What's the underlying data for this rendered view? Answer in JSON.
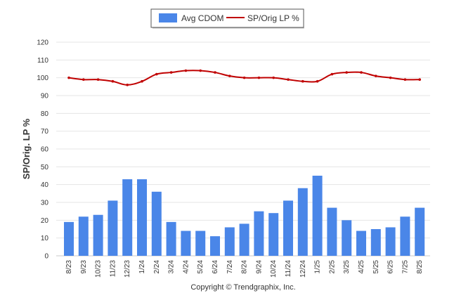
{
  "chart_data": {
    "type": "bar",
    "categories": [
      "8/23",
      "9/23",
      "10/23",
      "11/23",
      "12/23",
      "1/24",
      "2/24",
      "3/24",
      "4/24",
      "5/24",
      "6/24",
      "7/24",
      "8/24",
      "9/24",
      "10/24",
      "11/24",
      "12/24",
      "1/25",
      "2/25",
      "3/25",
      "4/25",
      "5/25",
      "6/25",
      "7/25",
      "8/25"
    ],
    "series": [
      {
        "name": "Avg CDOM",
        "type": "bar",
        "color": "#4a86e8",
        "values": [
          19,
          22,
          23,
          31,
          43,
          43,
          36,
          19,
          14,
          14,
          11,
          16,
          18,
          25,
          24,
          31,
          38,
          45,
          27,
          20,
          14,
          15,
          16,
          22,
          27
        ]
      },
      {
        "name": "SP/Orig LP %",
        "type": "line",
        "color": "#c00000",
        "values": [
          100,
          99,
          99,
          98,
          96,
          98,
          102,
          103,
          104,
          104,
          103,
          101,
          100,
          100,
          100,
          99,
          98,
          98,
          102,
          103,
          103,
          101,
          100,
          99,
          99
        ]
      }
    ],
    "ylabel": "SP/Orig. LP %",
    "ylim": [
      0,
      120
    ],
    "yticks": [
      0,
      10,
      20,
      30,
      40,
      50,
      60,
      70,
      80,
      90,
      100,
      110,
      120
    ],
    "grid": true,
    "legend_position": "top-center"
  },
  "footer": {
    "copyright": "Copyright © Trendgraphix, Inc."
  }
}
